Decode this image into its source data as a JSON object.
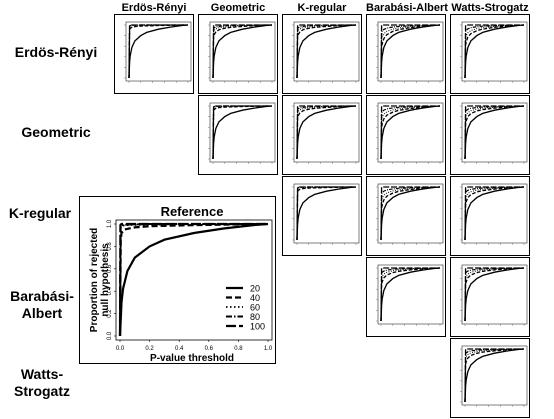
{
  "column_labels": [
    "Erdös-Rényi",
    "Geometric",
    "K-regular",
    "Barabási-Albert",
    "Watts-Strogatz"
  ],
  "row_labels": [
    {
      "lines": [
        "Erdös-Rényi"
      ]
    },
    {
      "lines": [
        "Geometric"
      ]
    },
    {
      "lines": [
        "K-regular"
      ]
    },
    {
      "lines": [
        "Barabási-",
        "Albert"
      ]
    },
    {
      "lines": [
        "Watts-",
        "Strogatz"
      ]
    }
  ],
  "chart_data": {
    "type": "line",
    "reference": {
      "title": "Reference",
      "xlabel": "P-value threshold",
      "ylabel_lines": [
        "Proportion of rejected",
        "null hypothesis"
      ],
      "xlim": [
        0,
        1
      ],
      "ylim": [
        0,
        1
      ],
      "xticks": [
        "0.0",
        "0.2",
        "0.4",
        "0.6",
        "0.8",
        "1.0"
      ],
      "yticks": [
        "0.0",
        "0.2",
        "0.4",
        "0.6",
        "0.8",
        "1.0"
      ],
      "legend_position": "bottom-right",
      "series": [
        {
          "name": "20",
          "style": "solid",
          "x": [
            0,
            0.01,
            0.02,
            0.05,
            0.1,
            0.2,
            0.3,
            0.5,
            0.7,
            0.9,
            1.0
          ],
          "y": [
            0,
            0.3,
            0.42,
            0.58,
            0.7,
            0.8,
            0.86,
            0.92,
            0.96,
            0.99,
            1.0
          ]
        },
        {
          "name": "40",
          "style": "dashed",
          "x": [
            0,
            0.005,
            0.01,
            0.03,
            0.06,
            0.1,
            0.2,
            0.5,
            1.0
          ],
          "y": [
            0,
            0.85,
            0.92,
            0.95,
            0.96,
            0.97,
            0.98,
            0.99,
            1.0
          ]
        },
        {
          "name": "60",
          "style": "dotted",
          "x": [
            0,
            0.005,
            0.01,
            0.05,
            0.2,
            0.5,
            1.0
          ],
          "y": [
            0,
            0.97,
            0.985,
            0.99,
            0.995,
            1.0,
            1.0
          ]
        },
        {
          "name": "80",
          "style": "dashdot",
          "x": [
            0,
            0.005,
            0.01,
            0.05,
            0.2,
            1.0
          ],
          "y": [
            0,
            0.98,
            0.99,
            0.995,
            1.0,
            1.0
          ]
        },
        {
          "name": "100",
          "style": "longdash",
          "x": [
            0,
            0.003,
            0.01,
            0.05,
            1.0
          ],
          "y": [
            0,
            0.99,
            1.0,
            1.0,
            1.0
          ]
        }
      ]
    },
    "grid": [
      [
        {
          "spread": 1.0
        },
        {
          "spread": 0.7
        },
        {
          "spread": 0.7
        },
        {
          "spread": 0.25
        },
        {
          "spread": 0.35
        }
      ],
      [
        null,
        {
          "spread": 1.0
        },
        {
          "spread": 0.7
        },
        {
          "spread": 0.3
        },
        {
          "spread": 0.45
        }
      ],
      [
        null,
        null,
        {
          "spread": 1.0
        },
        {
          "spread": 0.3
        },
        {
          "spread": 0.45
        }
      ],
      [
        null,
        null,
        null,
        {
          "spread": 0.5
        },
        {
          "spread": 0.5
        }
      ],
      [
        null,
        null,
        null,
        null,
        {
          "spread": 0.55
        }
      ]
    ]
  }
}
